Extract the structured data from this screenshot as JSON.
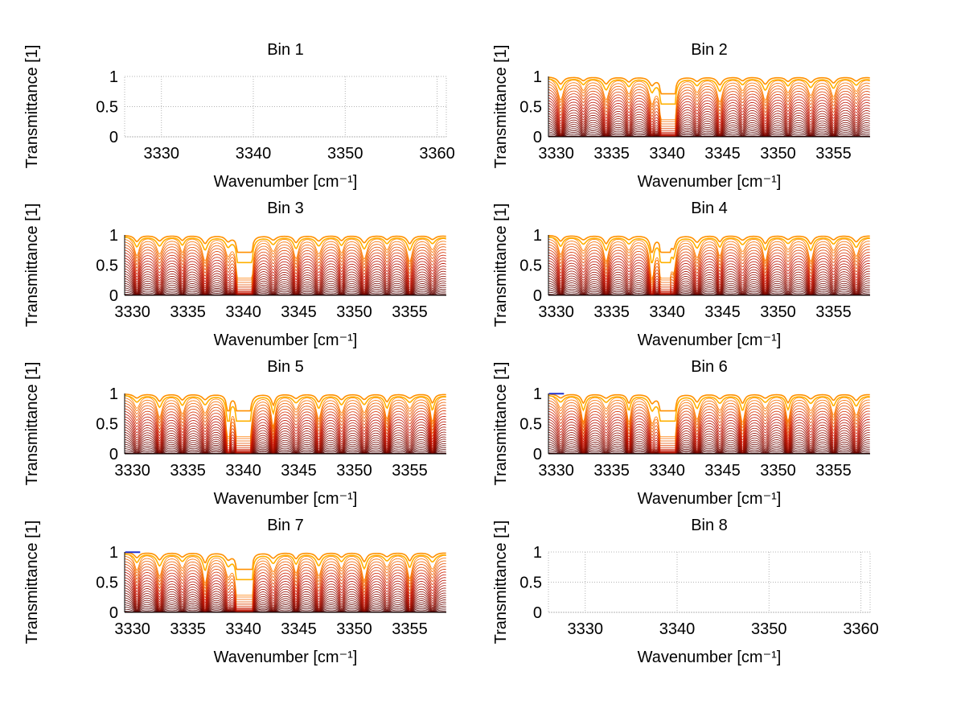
{
  "figure": {
    "background": "#ffffff",
    "rows": 4,
    "cols": 2,
    "text_color": "#000000",
    "grid_color": "#b4b4b4"
  },
  "chart_data": [
    {
      "type": "line",
      "title": "Bin 1",
      "xlabel": "Wavenumber [cm⁻¹]",
      "ylabel": "Transmittance [1]",
      "xlim": [
        3326,
        3361
      ],
      "xticks": [
        3330,
        3340,
        3350,
        3360
      ],
      "ylim": [
        0,
        1
      ],
      "yticks": [
        0,
        0.5,
        1
      ],
      "grid": true,
      "empty": true,
      "series_count": 0
    },
    {
      "type": "line",
      "title": "Bin 2",
      "xlabel": "Wavenumber [cm⁻¹]",
      "ylabel": "Transmittance [1]",
      "xlim": [
        3329.3,
        3358.3
      ],
      "xticks": [
        3330,
        3335,
        3340,
        3345,
        3350,
        3355
      ],
      "ylim": [
        0,
        1
      ],
      "yticks": [
        0,
        0.5,
        1
      ],
      "grid": false,
      "empty": false,
      "spectra": {
        "n_curves": 24,
        "first_line_x": 3330.4,
        "line_spacing": 2.05,
        "line_width": 0.38,
        "amp_min": 0.5,
        "amp_max": 0.78,
        "strong_line_x": 3339.8,
        "strong_line_amp": 1.35,
        "strong_line_width": 0.45,
        "seed": 1.7,
        "color_low": "#4a0000",
        "color_mid": "#c81400",
        "color_high": "#ff7f00",
        "cap_colors": [
          "#ff9000",
          "#ffb000"
        ],
        "blue_cap": false
      }
    },
    {
      "type": "line",
      "title": "Bin 3",
      "xlabel": "Wavenumber [cm⁻¹]",
      "ylabel": "Transmittance [1]",
      "xlim": [
        3329.3,
        3358.3
      ],
      "xticks": [
        3330,
        3335,
        3340,
        3345,
        3350,
        3355
      ],
      "ylim": [
        0,
        1
      ],
      "yticks": [
        0,
        0.5,
        1
      ],
      "grid": false,
      "empty": false,
      "spectra": {
        "n_curves": 24,
        "first_line_x": 3330.4,
        "line_spacing": 2.05,
        "line_width": 0.38,
        "amp_min": 0.52,
        "amp_max": 0.8,
        "strong_line_x": 3339.8,
        "strong_line_amp": 1.35,
        "strong_line_width": 0.45,
        "seed": 0.4,
        "color_low": "#4a0000",
        "color_mid": "#c81400",
        "color_high": "#ff7f00",
        "cap_colors": [
          "#ff9000",
          "#ffb000"
        ],
        "blue_cap": false
      }
    },
    {
      "type": "line",
      "title": "Bin 4",
      "xlabel": "Wavenumber [cm⁻¹]",
      "ylabel": "Transmittance [1]",
      "xlim": [
        3329.3,
        3358.3
      ],
      "xticks": [
        3330,
        3335,
        3340,
        3345,
        3350,
        3355
      ],
      "ylim": [
        0,
        1
      ],
      "yticks": [
        0,
        0.5,
        1
      ],
      "grid": false,
      "empty": false,
      "spectra": {
        "n_curves": 24,
        "first_line_x": 3330.4,
        "line_spacing": 2.05,
        "line_width": 0.38,
        "amp_min": 0.52,
        "amp_max": 0.8,
        "strong_line_x": 3339.8,
        "strong_line_amp": 1.35,
        "strong_line_width": 0.45,
        "seed": 2.9,
        "color_low": "#4a0000",
        "color_mid": "#c81400",
        "color_high": "#ff7f00",
        "cap_colors": [
          "#ff9000",
          "#ffb000"
        ],
        "blue_cap": false
      }
    },
    {
      "type": "line",
      "title": "Bin 5",
      "xlabel": "Wavenumber [cm⁻¹]",
      "ylabel": "Transmittance [1]",
      "xlim": [
        3329.3,
        3358.3
      ],
      "xticks": [
        3330,
        3335,
        3340,
        3345,
        3350,
        3355
      ],
      "ylim": [
        0,
        1
      ],
      "yticks": [
        0,
        0.5,
        1
      ],
      "grid": false,
      "empty": false,
      "spectra": {
        "n_curves": 24,
        "first_line_x": 3330.4,
        "line_spacing": 2.05,
        "line_width": 0.38,
        "amp_min": 0.54,
        "amp_max": 0.82,
        "strong_line_x": 3339.8,
        "strong_line_amp": 1.4,
        "strong_line_width": 0.5,
        "seed": 4.1,
        "color_low": "#4a0000",
        "color_mid": "#c81400",
        "color_high": "#ff7f00",
        "cap_colors": [
          "#ff9000",
          "#ffb000"
        ],
        "blue_cap": false
      }
    },
    {
      "type": "line",
      "title": "Bin 6",
      "xlabel": "Wavenumber [cm⁻¹]",
      "ylabel": "Transmittance [1]",
      "xlim": [
        3329.3,
        3358.3
      ],
      "xticks": [
        3330,
        3335,
        3340,
        3345,
        3350,
        3355
      ],
      "ylim": [
        0,
        1
      ],
      "yticks": [
        0,
        0.5,
        1
      ],
      "grid": false,
      "empty": false,
      "spectra": {
        "n_curves": 24,
        "first_line_x": 3330.4,
        "line_spacing": 2.05,
        "line_width": 0.38,
        "amp_min": 0.54,
        "amp_max": 0.82,
        "strong_line_x": 3339.8,
        "strong_line_amp": 1.4,
        "strong_line_width": 0.5,
        "seed": 5.3,
        "color_low": "#4a0000",
        "color_mid": "#c81400",
        "color_high": "#ff7f00",
        "cap_colors": [
          "#ff9000",
          "#ffb000"
        ],
        "blue_cap": true
      }
    },
    {
      "type": "line",
      "title": "Bin 7",
      "xlabel": "Wavenumber [cm⁻¹]",
      "ylabel": "Transmittance [1]",
      "xlim": [
        3329.3,
        3358.3
      ],
      "xticks": [
        3330,
        3335,
        3340,
        3345,
        3350,
        3355
      ],
      "ylim": [
        0,
        1
      ],
      "yticks": [
        0,
        0.5,
        1
      ],
      "grid": false,
      "empty": false,
      "spectra": {
        "n_curves": 24,
        "first_line_x": 3330.4,
        "line_spacing": 2.05,
        "line_width": 0.38,
        "amp_min": 0.54,
        "amp_max": 0.82,
        "strong_line_x": 3339.8,
        "strong_line_amp": 1.4,
        "strong_line_width": 0.5,
        "seed": 6.1,
        "color_low": "#4a0000",
        "color_mid": "#c81400",
        "color_high": "#ff7f00",
        "cap_colors": [
          "#ff9000",
          "#ffb000"
        ],
        "blue_cap": true
      }
    },
    {
      "type": "line",
      "title": "Bin 8",
      "xlabel": "Wavenumber [cm⁻¹]",
      "ylabel": "Transmittance [1]",
      "xlim": [
        3326,
        3361
      ],
      "xticks": [
        3330,
        3340,
        3350,
        3360
      ],
      "ylim": [
        0,
        1
      ],
      "yticks": [
        0,
        0.5,
        1
      ],
      "grid": true,
      "empty": true,
      "series_count": 0
    }
  ]
}
